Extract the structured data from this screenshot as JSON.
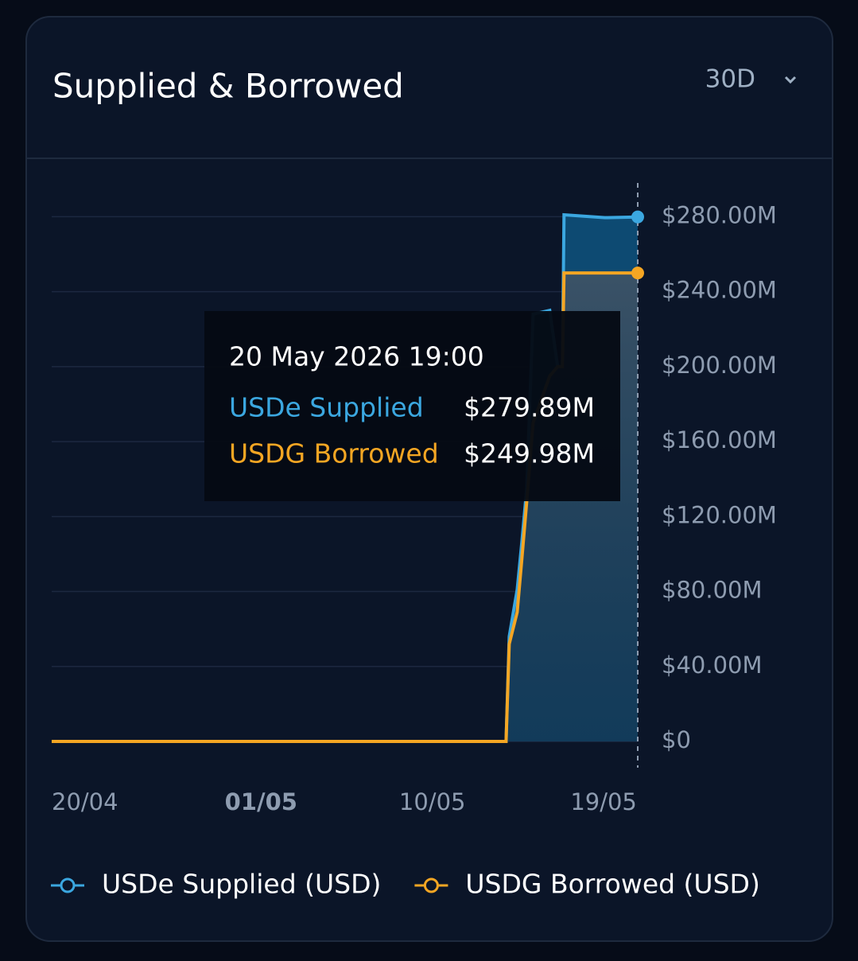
{
  "header": {
    "title": "Supplied & Borrowed",
    "range": "30D"
  },
  "chart_data": {
    "type": "area",
    "x": [
      "2026-04-20T00:00",
      "2026-05-13T21:00",
      "2026-05-14T01:00",
      "2026-05-14T11:00",
      "2026-05-14T17:00",
      "2026-05-14T23:00",
      "2026-05-15T07:00",
      "2026-05-16T04:00",
      "2026-05-16T14:00",
      "2026-05-16T20:00",
      "2026-05-16T22:00",
      "2026-05-19T02:00",
      "2026-05-20T19:00"
    ],
    "series": [
      {
        "name": "USDe Supplied (USD)",
        "color": "#3ba7e0",
        "values": [
          0,
          0,
          56,
          81,
          107,
          135,
          228,
          230,
          200,
          200,
          281,
          279.5,
          279.89
        ]
      },
      {
        "name": "USDG Borrowed (USD)",
        "color": "#f5a623",
        "values": [
          0,
          0,
          52,
          69,
          98,
          128,
          170,
          195,
          200,
          200,
          249.98,
          249.98,
          249.98
        ]
      }
    ],
    "xlim": [
      "2026-04-20T00:00",
      "2026-05-20T19:00"
    ],
    "xticks": [
      {
        "value": "2026-04-20T00:00",
        "label": "20/04"
      },
      {
        "value": "2026-05-01T00:00",
        "label": "01/05"
      },
      {
        "value": "2026-05-10T00:00",
        "label": "10/05"
      },
      {
        "value": "2026-05-19T00:00",
        "label": "19/05"
      }
    ],
    "ylim": [
      -14,
      298
    ],
    "yticks": [
      {
        "value": 0,
        "label": "$0"
      },
      {
        "value": 40,
        "label": "$40.00M"
      },
      {
        "value": 80,
        "label": "$80.00M"
      },
      {
        "value": 120,
        "label": "$120.00M"
      },
      {
        "value": 160,
        "label": "$160.00M"
      },
      {
        "value": 200,
        "label": "$200.00M"
      },
      {
        "value": 240,
        "label": "$240.00M"
      },
      {
        "value": 280,
        "label": "$280.00M"
      }
    ],
    "grid": true
  },
  "tooltip": {
    "title": "20 May 2026 19:00",
    "rows": [
      {
        "label": "USDe Supplied",
        "value": "$279.89M"
      },
      {
        "label": "USDG Borrowed",
        "value": "$249.98M"
      }
    ]
  }
}
